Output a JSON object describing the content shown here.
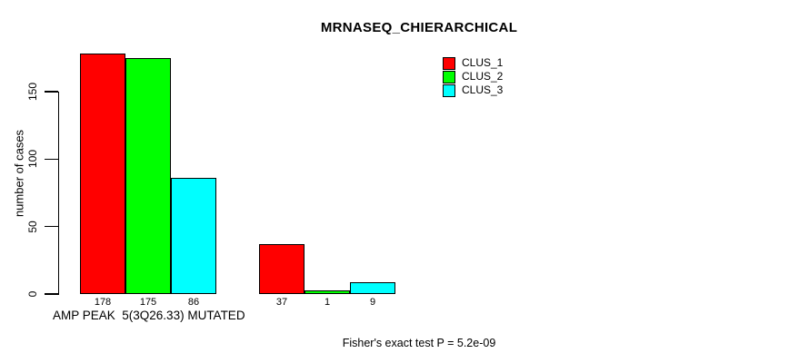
{
  "title": "MRNASEQ_CHIERARCHICAL",
  "y_axis": {
    "label": "number of cases",
    "ticks": [
      0,
      50,
      100,
      150
    ]
  },
  "x_axis": {
    "group_label": "AMP PEAK  5(3Q26.33) MUTATED"
  },
  "legend": {
    "items": [
      {
        "label": "CLUS_1",
        "color": "#ff0000"
      },
      {
        "label": "CLUS_2",
        "color": "#00ff00"
      },
      {
        "label": "CLUS_3",
        "color": "#00ffff"
      }
    ]
  },
  "footer": {
    "text": "Fisher's exact test P = 5.2e-09"
  },
  "chart_data": {
    "type": "bar",
    "title": "MRNASEQ_CHIERARCHICAL",
    "xlabel": "AMP PEAK  5(3Q26.33) MUTATED",
    "ylabel": "number of cases",
    "ylim": [
      0,
      178
    ],
    "yticks": [
      0,
      50,
      100,
      150
    ],
    "grid": false,
    "legend_position": "top-right",
    "background": "#ffffff",
    "bar_border_color": "#000000",
    "categories": [
      "AMP PEAK 5(3Q26.33)",
      "MUTATED"
    ],
    "series": [
      {
        "name": "CLUS_1",
        "color": "#ff0000",
        "values": [
          178,
          37
        ]
      },
      {
        "name": "CLUS_2",
        "color": "#00ff00",
        "values": [
          175,
          1
        ]
      },
      {
        "name": "CLUS_3",
        "color": "#00ffff",
        "values": [
          86,
          9
        ]
      }
    ],
    "bar_value_labels": [
      [
        178,
        175,
        86
      ],
      [
        37,
        1,
        9
      ]
    ],
    "annotation": "Fisher's exact test P = 5.2e-09"
  }
}
